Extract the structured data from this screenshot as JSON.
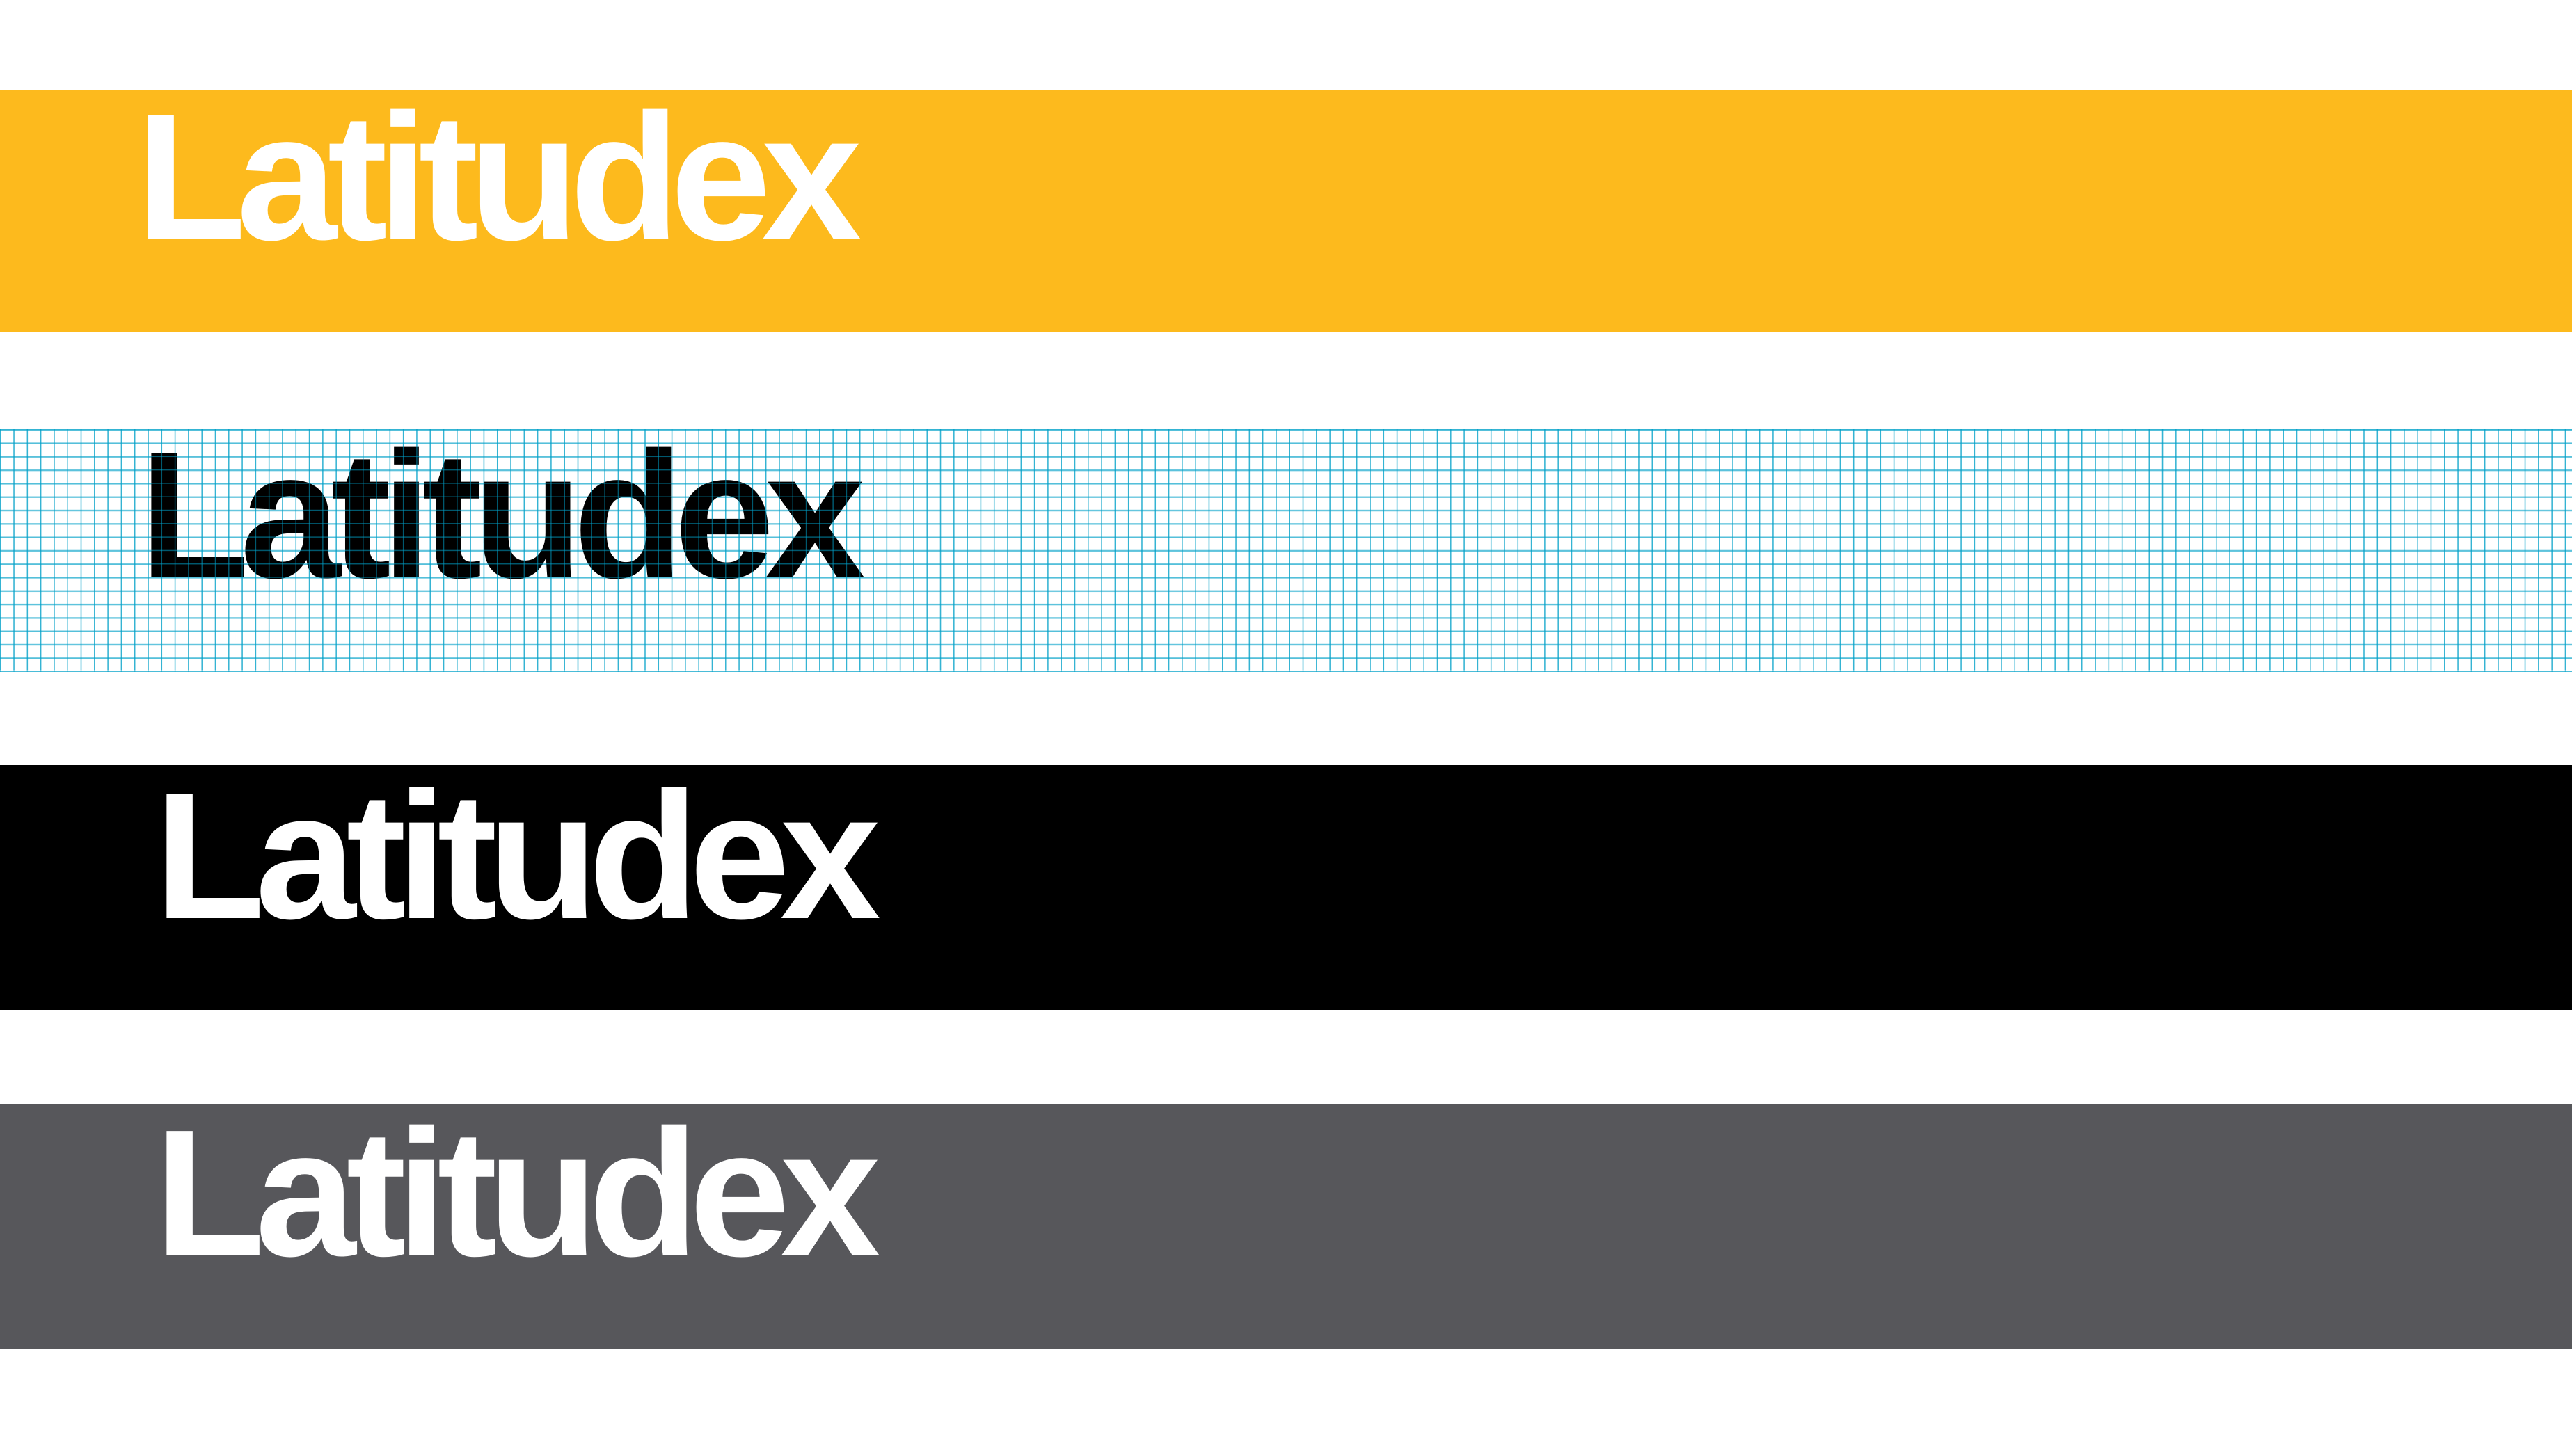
{
  "panels": [
    {
      "id": "yellow",
      "wordmark": "Latitudex",
      "background_color": "#FDBA1D",
      "text_color": "#FFFFFF"
    },
    {
      "id": "grid",
      "wordmark": "Latitudex",
      "background_color": "#FFFFFF",
      "grid_color": "#2AA6C8",
      "text_color": "#000000"
    },
    {
      "id": "black",
      "wordmark": "Latitudex",
      "background_color": "#000000",
      "text_color": "#FFFFFF"
    },
    {
      "id": "gray",
      "wordmark": "Latitudex",
      "background_color": "#57575B",
      "text_color": "#FFFFFF"
    }
  ]
}
